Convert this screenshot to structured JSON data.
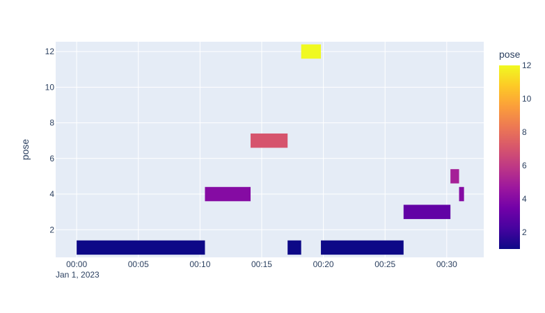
{
  "chart_data": {
    "type": "timeline",
    "xlabel": "",
    "ylabel": "pose",
    "x_date_label": "Jan 1, 2023",
    "x_unit": "minutes after 00:00",
    "xlim": [
      -1.7,
      33.0
    ],
    "ylim": [
      0.45,
      12.55
    ],
    "x_tick_labels": [
      "00:00",
      "00:05",
      "00:10",
      "00:15",
      "00:20",
      "00:25",
      "00:30"
    ],
    "x_tick_values": [
      0,
      5,
      10,
      15,
      20,
      25,
      30
    ],
    "y_ticks": [
      2,
      4,
      6,
      8,
      10,
      12
    ],
    "grid": true,
    "bar_height": 0.8,
    "bars": [
      {
        "start": 0.0,
        "end": 10.4,
        "pose": 1
      },
      {
        "start": 10.4,
        "end": 14.1,
        "pose": 4
      },
      {
        "start": 14.1,
        "end": 17.1,
        "pose": 7
      },
      {
        "start": 17.1,
        "end": 18.2,
        "pose": 1
      },
      {
        "start": 18.2,
        "end": 19.8,
        "pose": 12
      },
      {
        "start": 19.8,
        "end": 26.5,
        "pose": 1
      },
      {
        "start": 26.5,
        "end": 30.3,
        "pose": 3
      },
      {
        "start": 30.3,
        "end": 31.0,
        "pose": 5
      },
      {
        "start": 31.0,
        "end": 31.4,
        "pose": 4
      }
    ],
    "colorbar": {
      "title": "pose",
      "min": 1,
      "max": 12,
      "ticks": [
        2,
        4,
        6,
        8,
        10,
        12
      ],
      "colorscale": [
        "#0d0887",
        "#46039f",
        "#7201a8",
        "#9c179e",
        "#bd3786",
        "#d8576b",
        "#ed7953",
        "#fb9f3a",
        "#fdca26",
        "#f0f921"
      ]
    },
    "colors": {
      "plot_bg": "#e5ecf6",
      "grid": "#ffffff",
      "text": "#2a3f5f"
    }
  }
}
